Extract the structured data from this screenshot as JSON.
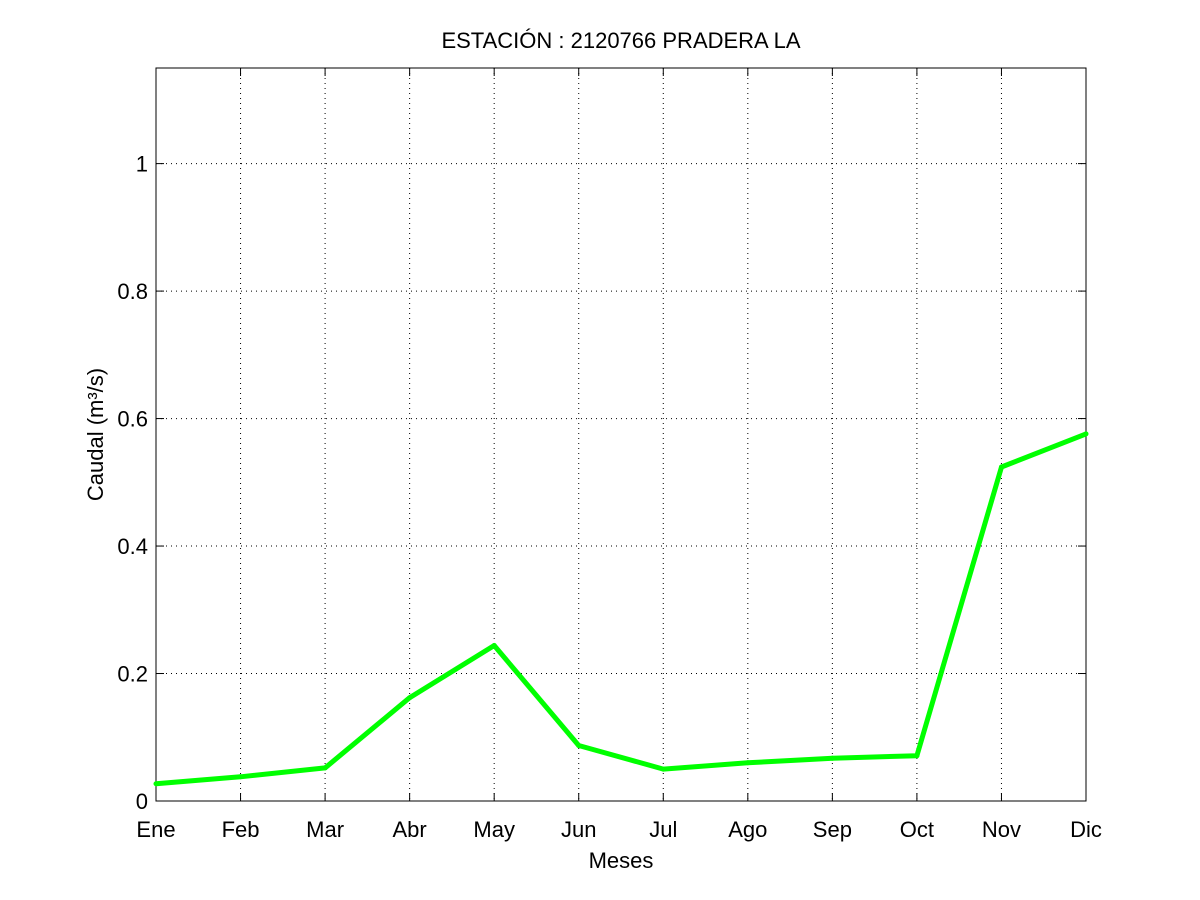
{
  "chart_data": {
    "type": "line",
    "title": "ESTACIÓN :  2120766  PRADERA LA",
    "xlabel": "Meses",
    "ylabel": "Caudal (m³/s)",
    "categories": [
      "Ene",
      "Feb",
      "Mar",
      "Abr",
      "May",
      "Jun",
      "Jul",
      "Ago",
      "Sep",
      "Oct",
      "Nov",
      "Dic"
    ],
    "series": [
      {
        "values": [
          0.027,
          0.038,
          0.052,
          0.162,
          0.244,
          0.087,
          0.05,
          0.06,
          0.067,
          0.071,
          0.524,
          0.576
        ],
        "color": "#00ff00"
      }
    ],
    "ylim": [
      0,
      1.15
    ],
    "yticks": [
      0,
      0.2,
      0.4,
      0.6,
      0.8,
      1
    ],
    "ytick_labels": [
      "0",
      "0.2",
      "0.4",
      "0.6",
      "0.8",
      "1"
    ],
    "grid": true
  }
}
